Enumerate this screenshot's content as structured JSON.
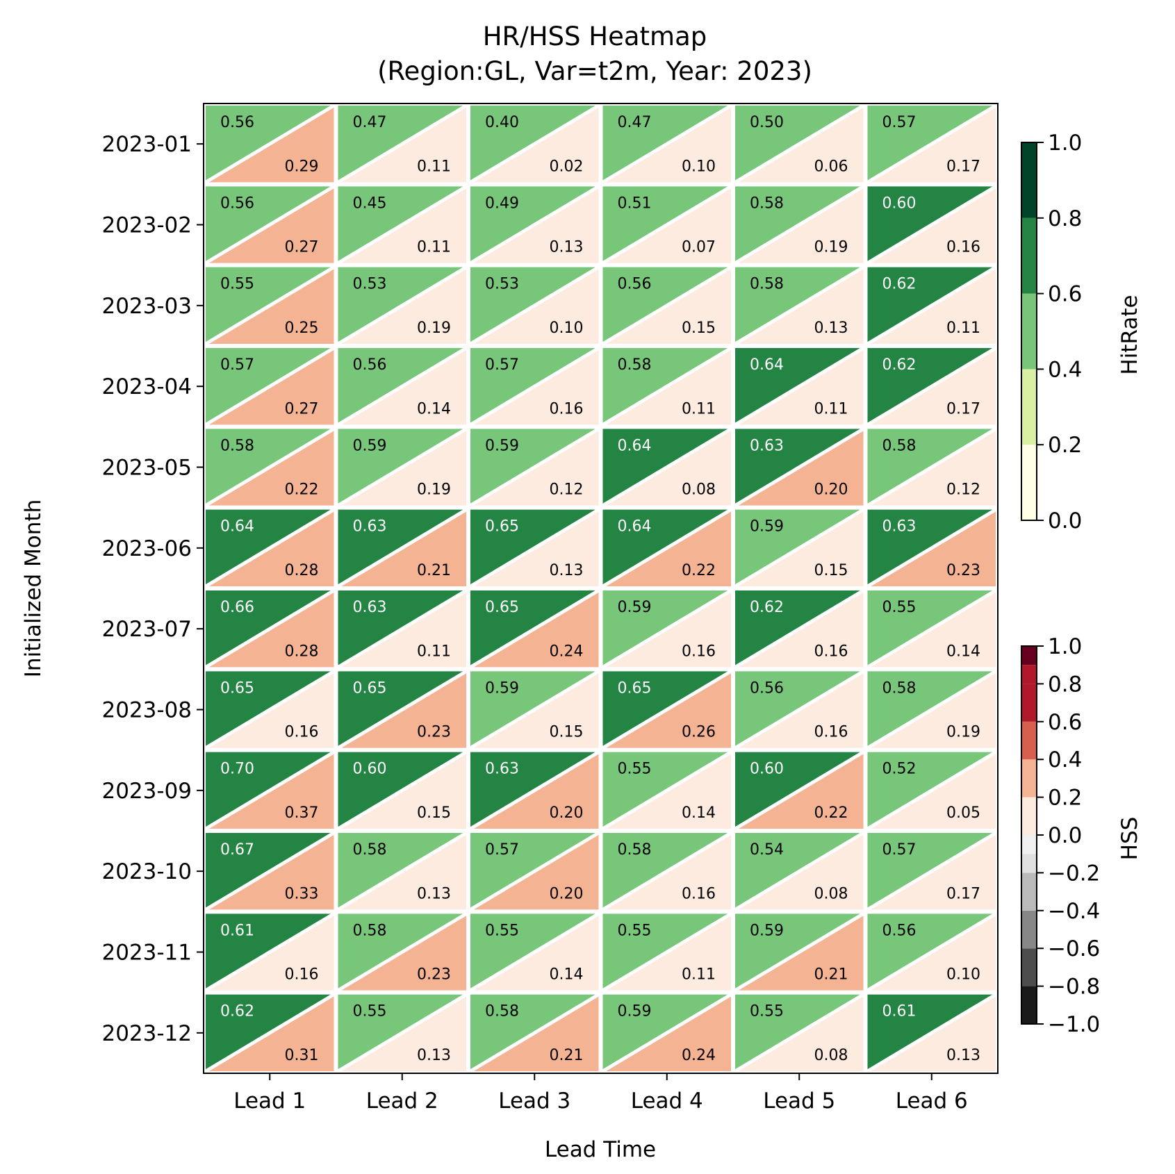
{
  "chart_data": {
    "type": "heatmap",
    "title_line1": "HR/HSS Heatmap",
    "title_line2": "(Region:GL, Var=t2m, Year: 2023)",
    "xlabel": "Lead Time",
    "ylabel": "Initialized Month",
    "x": [
      "Lead 1",
      "Lead 2",
      "Lead 3",
      "Lead 4",
      "Lead 5",
      "Lead 6"
    ],
    "y": [
      "2023-01",
      "2023-02",
      "2023-03",
      "2023-04",
      "2023-05",
      "2023-06",
      "2023-07",
      "2023-08",
      "2023-09",
      "2023-10",
      "2023-11",
      "2023-12"
    ],
    "series": [
      {
        "name": "HitRate",
        "values": [
          [
            0.56,
            0.47,
            0.4,
            0.47,
            0.5,
            0.57
          ],
          [
            0.56,
            0.45,
            0.49,
            0.51,
            0.58,
            0.6
          ],
          [
            0.55,
            0.53,
            0.53,
            0.56,
            0.58,
            0.62
          ],
          [
            0.57,
            0.56,
            0.57,
            0.58,
            0.64,
            0.62
          ],
          [
            0.58,
            0.59,
            0.59,
            0.64,
            0.63,
            0.58
          ],
          [
            0.64,
            0.63,
            0.65,
            0.64,
            0.59,
            0.63
          ],
          [
            0.66,
            0.63,
            0.65,
            0.59,
            0.62,
            0.55
          ],
          [
            0.65,
            0.65,
            0.59,
            0.65,
            0.56,
            0.58
          ],
          [
            0.7,
            0.6,
            0.63,
            0.55,
            0.6,
            0.52
          ],
          [
            0.67,
            0.58,
            0.57,
            0.58,
            0.54,
            0.57
          ],
          [
            0.61,
            0.58,
            0.55,
            0.55,
            0.59,
            0.56
          ],
          [
            0.62,
            0.55,
            0.58,
            0.59,
            0.55,
            0.61
          ]
        ]
      },
      {
        "name": "HSS",
        "values": [
          [
            0.29,
            0.11,
            0.02,
            0.1,
            0.06,
            0.17
          ],
          [
            0.27,
            0.11,
            0.13,
            0.07,
            0.19,
            0.16
          ],
          [
            0.25,
            0.19,
            0.1,
            0.15,
            0.13,
            0.11
          ],
          [
            0.27,
            0.14,
            0.16,
            0.11,
            0.11,
            0.17
          ],
          [
            0.22,
            0.19,
            0.12,
            0.08,
            0.2,
            0.12
          ],
          [
            0.28,
            0.21,
            0.13,
            0.22,
            0.15,
            0.23
          ],
          [
            0.28,
            0.11,
            0.24,
            0.16,
            0.16,
            0.14
          ],
          [
            0.16,
            0.23,
            0.15,
            0.26,
            0.16,
            0.19
          ],
          [
            0.37,
            0.15,
            0.2,
            0.14,
            0.22,
            0.05
          ],
          [
            0.33,
            0.13,
            0.2,
            0.16,
            0.08,
            0.17
          ],
          [
            0.16,
            0.23,
            0.14,
            0.11,
            0.21,
            0.1
          ],
          [
            0.31,
            0.13,
            0.21,
            0.24,
            0.08,
            0.13
          ]
        ]
      }
    ],
    "colorbars": [
      {
        "label": "HitRate",
        "range": [
          0.0,
          1.0
        ],
        "ticks": [
          "0.0",
          "0.2",
          "0.4",
          "0.6",
          "0.8",
          "1.0"
        ],
        "bounds": [
          0.0,
          0.2,
          0.4,
          0.5,
          0.6,
          0.8,
          1.0
        ],
        "colors": [
          "#ffffe5",
          "#d9f0a3",
          "#78c679",
          "#78c679",
          "#238443",
          "#004529"
        ]
      },
      {
        "label": "HSS",
        "range": [
          -1.0,
          1.0
        ],
        "ticks": [
          "−1.0",
          "−0.8",
          "−0.6",
          "−0.4",
          "−0.2",
          "0.0",
          "0.2",
          "0.4",
          "0.6",
          "0.8",
          "1.0"
        ],
        "bounds": [
          -1.0,
          -0.8,
          -0.6,
          -0.4,
          -0.2,
          -0.1,
          0.0,
          0.2,
          0.4,
          0.6,
          0.8,
          0.9,
          1.0
        ],
        "colors": [
          "#1a1a1a",
          "#4d4d4d",
          "#878787",
          "#bababa",
          "#e0e0e0",
          "#f0f0f0",
          "#fdebe0",
          "#f4b393",
          "#d6604d",
          "#b2182b",
          "#b2182b",
          "#67001f"
        ]
      }
    ]
  }
}
